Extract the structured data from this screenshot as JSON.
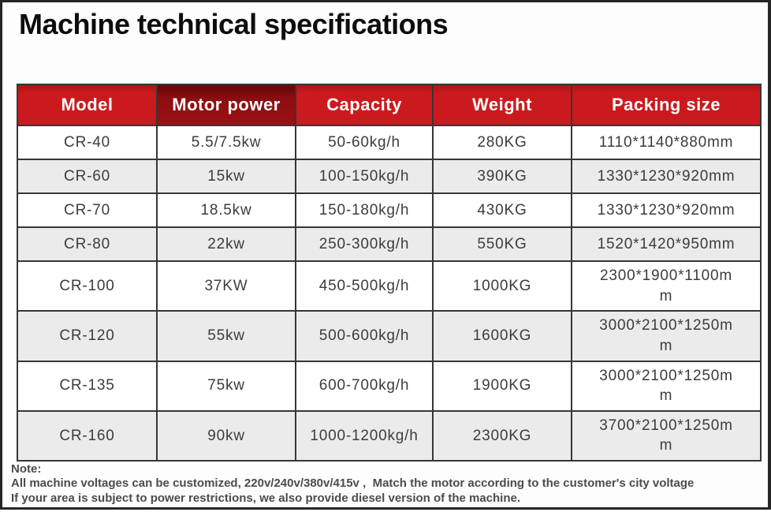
{
  "page": {
    "title": "Machine technical specifications"
  },
  "colors": {
    "header_red": "#cb1a1e",
    "header_dark_red": "#9c1114",
    "row_alt_gray": "#ebebeb",
    "border": "#363636",
    "cell_text": "#3c3c3c",
    "note_text": "#4c4c4c",
    "frame": "#262626"
  },
  "table": {
    "columns": [
      "model",
      "motor-power",
      "capacity",
      "weight",
      "packing-size"
    ],
    "headers": [
      "Model",
      "Motor power",
      "Capacity",
      "Weight",
      "Packing size"
    ],
    "rows": [
      [
        "CR-40",
        "5.5/7.5kw",
        "50-60kg/h",
        "280KG",
        "1110*1140*880mm"
      ],
      [
        "CR-60",
        "15kw",
        "100-150kg/h",
        "390KG",
        "1330*1230*920mm"
      ],
      [
        "CR-70",
        "18.5kw",
        "150-180kg/h",
        "430KG",
        "1330*1230*920mm"
      ],
      [
        "CR-80",
        "22kw",
        "250-300kg/h",
        "550KG",
        "1520*1420*950mm"
      ],
      [
        "CR-100",
        "37KW",
        "450-500kg/h",
        "1000KG",
        "2300*1900*1100m\nm"
      ],
      [
        "CR-120",
        "55kw",
        "500-600kg/h",
        "1600KG",
        "3000*2100*1250m\nm"
      ],
      [
        "CR-135",
        "75kw",
        "600-700kg/h",
        "1900KG",
        "3000*2100*1250m\nm"
      ],
      [
        "CR-160",
        "90kw",
        "1000-1200kg/h",
        "2300KG",
        "3700*2100*1250m\nm"
      ]
    ]
  },
  "note": {
    "label": "Note:",
    "line1": "All machine voltages can be customized, 220v/240v/380v/415v ,  Match the motor according to the customer's city voltage",
    "line2": "If your area is subject to power restrictions, we also provide diesel version of the machine."
  }
}
